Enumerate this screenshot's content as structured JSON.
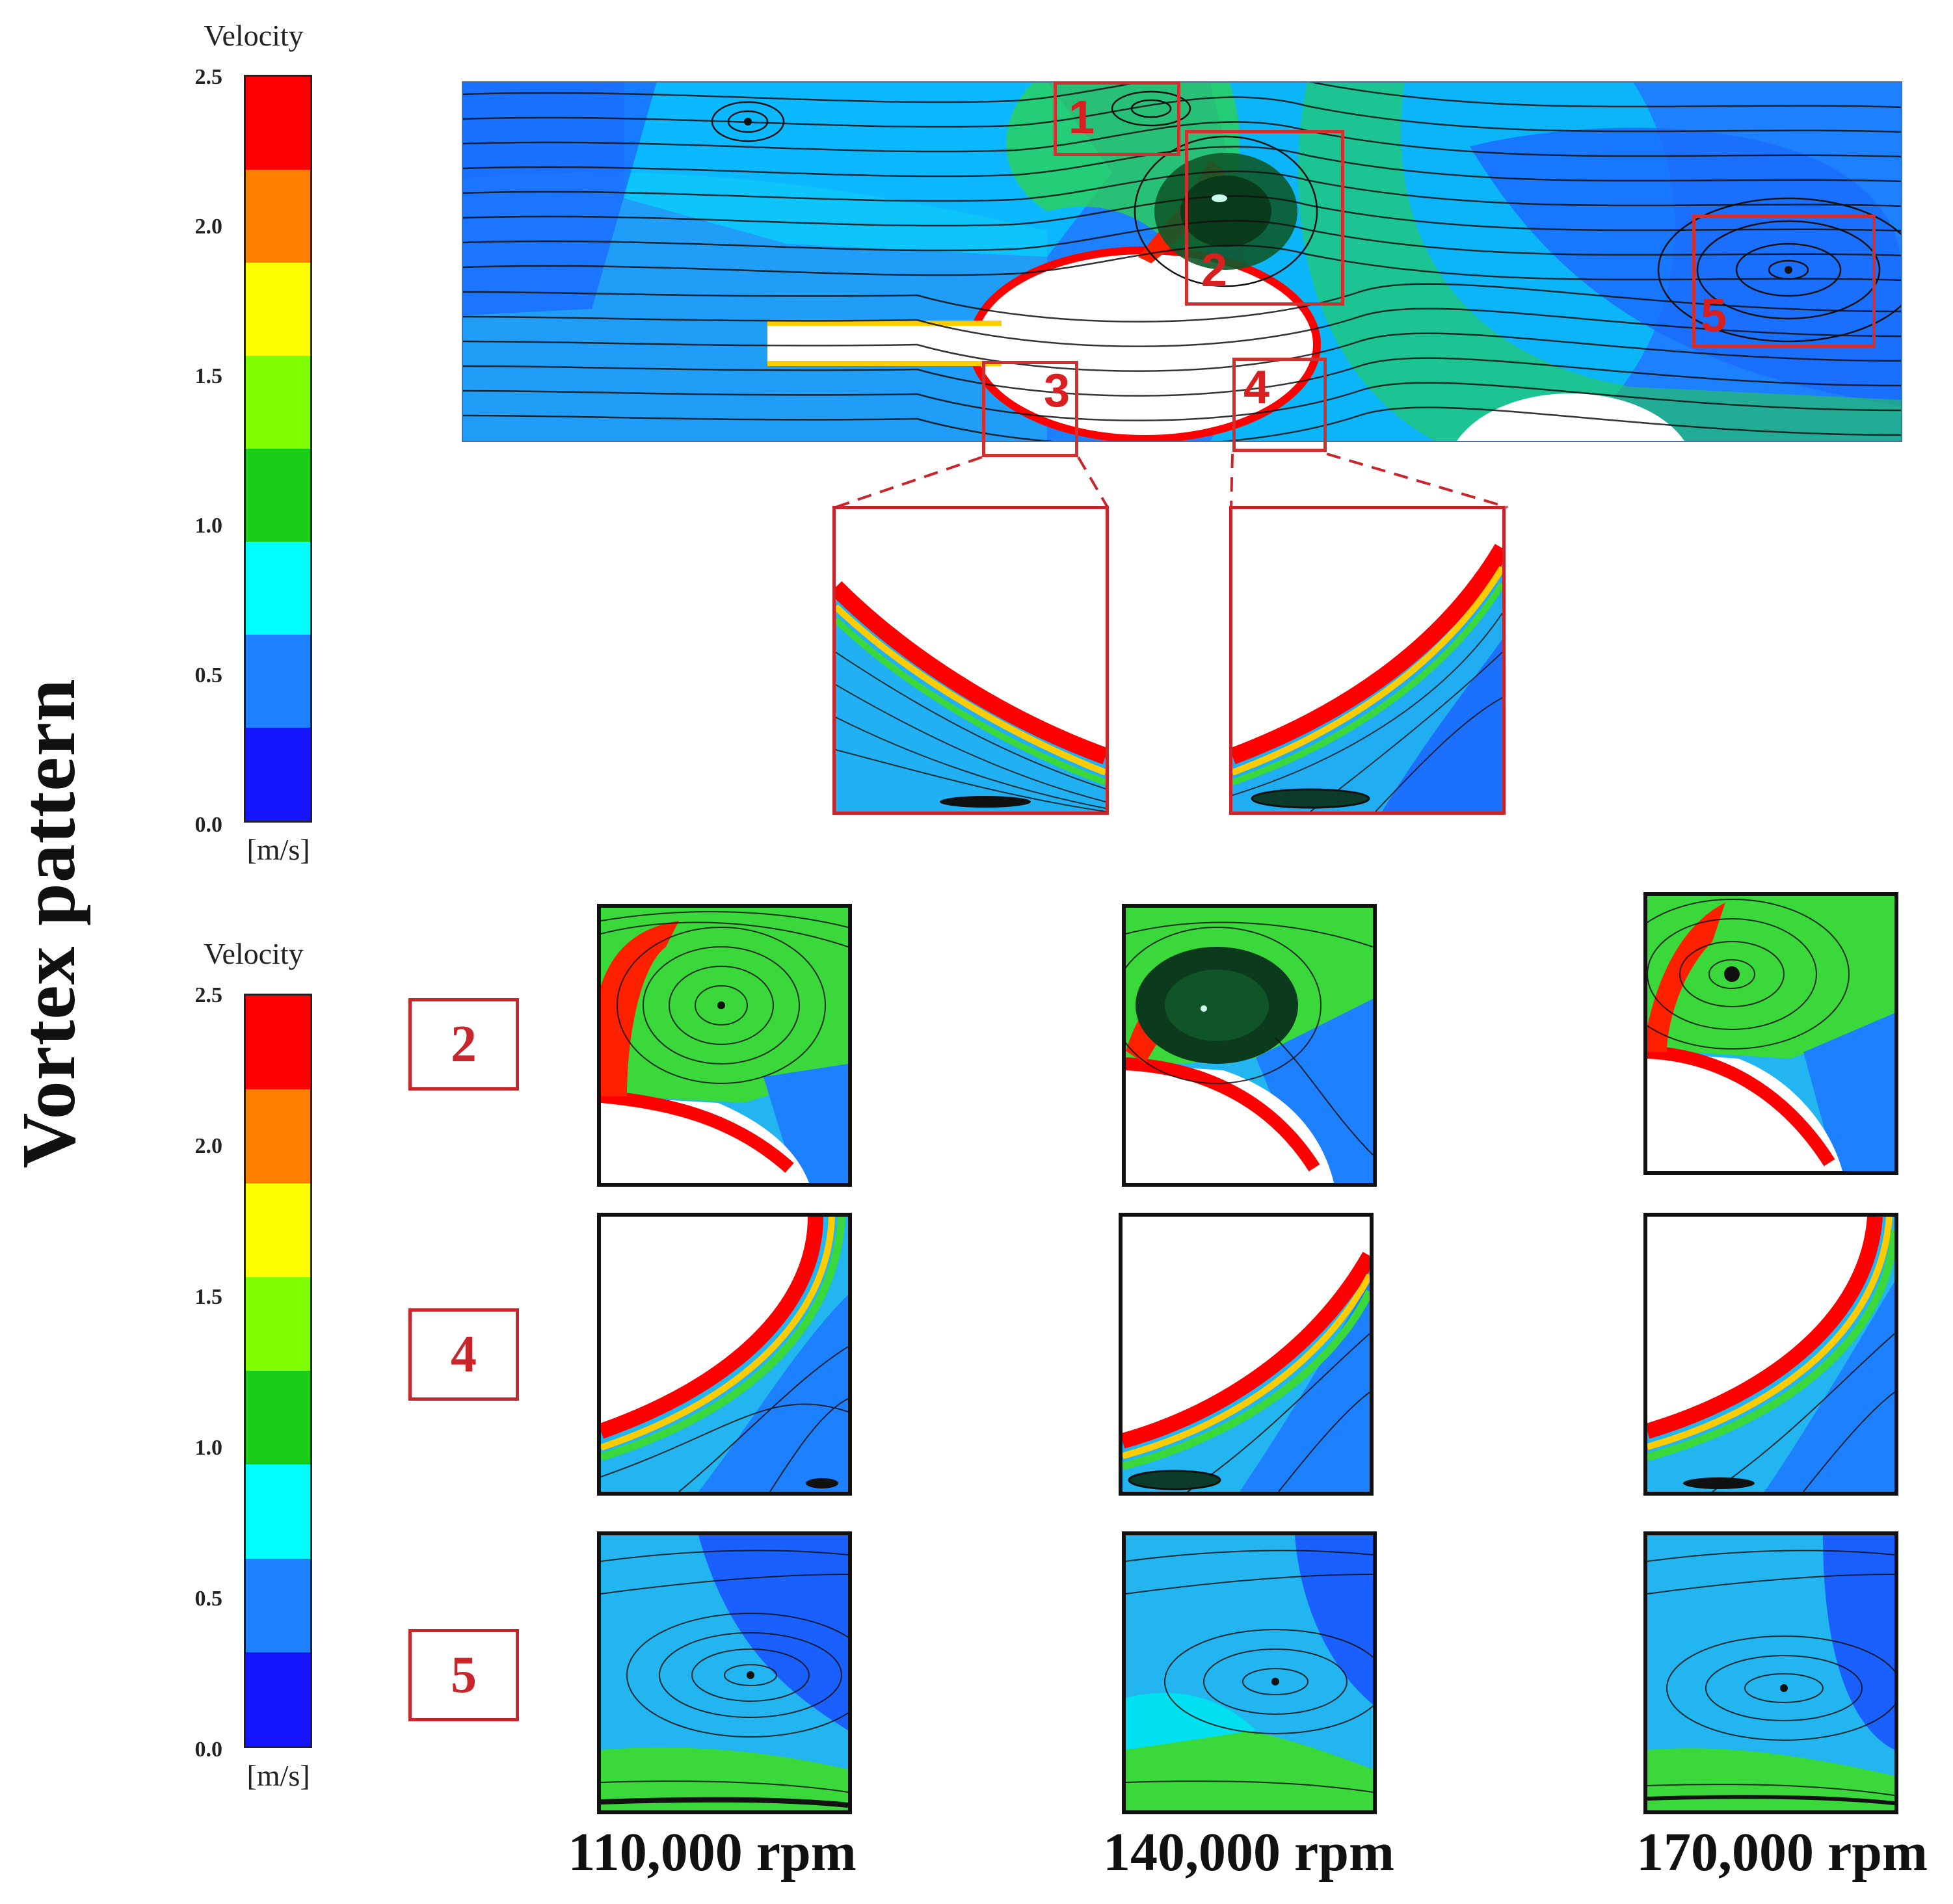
{
  "figure": {
    "side_title": "Vortex pattern"
  },
  "colorbar_top": {
    "title": "Velocity",
    "unit": "[m/s]",
    "ticks": [
      "2.5",
      "2.0",
      "1.5",
      "1.0",
      "0.5",
      "0.0"
    ]
  },
  "colorbar_bottom": {
    "title": "Velocity",
    "unit": "[m/s]",
    "ticks": [
      "2.5",
      "2.0",
      "1.5",
      "1.0",
      "0.5",
      "0.0"
    ]
  },
  "colormap": [
    "#1515ff",
    "#1c80ff",
    "#00ffff",
    "#18cc18",
    "#80ff00",
    "#ffff00",
    "#ff8000",
    "#ff0000"
  ],
  "main_view": {
    "region_labels": [
      "1",
      "2",
      "3",
      "4",
      "5"
    ]
  },
  "rows": [
    {
      "label": "2"
    },
    {
      "label": "4"
    },
    {
      "label": "5"
    }
  ],
  "columns": [
    {
      "label": "110,000 rpm"
    },
    {
      "label": "140,000 rpm"
    },
    {
      "label": "170,000 rpm"
    }
  ]
}
